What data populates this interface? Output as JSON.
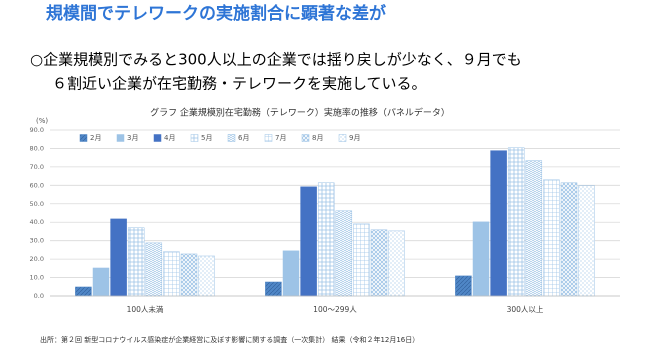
{
  "header": {
    "title": "規模間でテレワークの実施割合に顕著な差が"
  },
  "bullet": [
    "○企業規模別でみると300人以上の企業では揺り戻しが少なく、９月でも",
    "６割近い企業が在宅勤務・テレワークを実施している。"
  ],
  "chart_data": {
    "type": "bar",
    "title": "グラフ 企業規模別在宅勤務（テレワーク）実施率の推移（パネルデータ）",
    "y_label": "(%)",
    "categories": [
      "100人未満",
      "100〜299人",
      "300人以上"
    ],
    "series": [
      {
        "name": "2月",
        "color": "#4f86c6",
        "values": [
          4.9,
          7.6,
          10.9
        ]
      },
      {
        "name": "3月",
        "color": "#9dc3e6",
        "values": [
          15.2,
          24.5,
          40.2
        ]
      },
      {
        "name": "4月",
        "color": "#4472c4",
        "values": [
          41.8,
          59.2,
          78.8
        ]
      },
      {
        "name": "5月",
        "color": "#9dc3e6",
        "values": [
          37.0,
          61.4,
          80.4
        ]
      },
      {
        "name": "6月",
        "color": "#9dc3e6",
        "values": [
          28.8,
          46.2,
          73.4
        ]
      },
      {
        "name": "7月",
        "color": "#9dc3e6",
        "values": [
          24.0,
          39.1,
          63.0
        ]
      },
      {
        "name": "8月",
        "color": "#9dc3e6",
        "values": [
          22.8,
          35.9,
          61.4
        ]
      },
      {
        "name": "9月",
        "color": "#9dc3e6",
        "values": [
          21.7,
          35.3,
          59.8
        ]
      }
    ],
    "ylim": [
      0,
      90
    ],
    "yticks": [
      {
        "value": 0,
        "label": "0.0"
      },
      {
        "value": 10,
        "label": "10.0"
      },
      {
        "value": 20,
        "label": "20.0"
      },
      {
        "value": 30,
        "label": "30.0"
      },
      {
        "value": 40,
        "label": "40.0"
      },
      {
        "value": 50,
        "label": "50.0"
      },
      {
        "value": 60,
        "label": "60.0"
      },
      {
        "value": 70,
        "label": "70.0"
      },
      {
        "value": 80,
        "label": "80.0"
      },
      {
        "value": 90,
        "label": "90.0"
      }
    ],
    "grid": true,
    "legend": "top"
  },
  "source": "出所：第２回 新型コロナウイルス感染症が企業経営に及ぼす影響に関する調査（一次集計） 結果（令和２年12月16日）"
}
